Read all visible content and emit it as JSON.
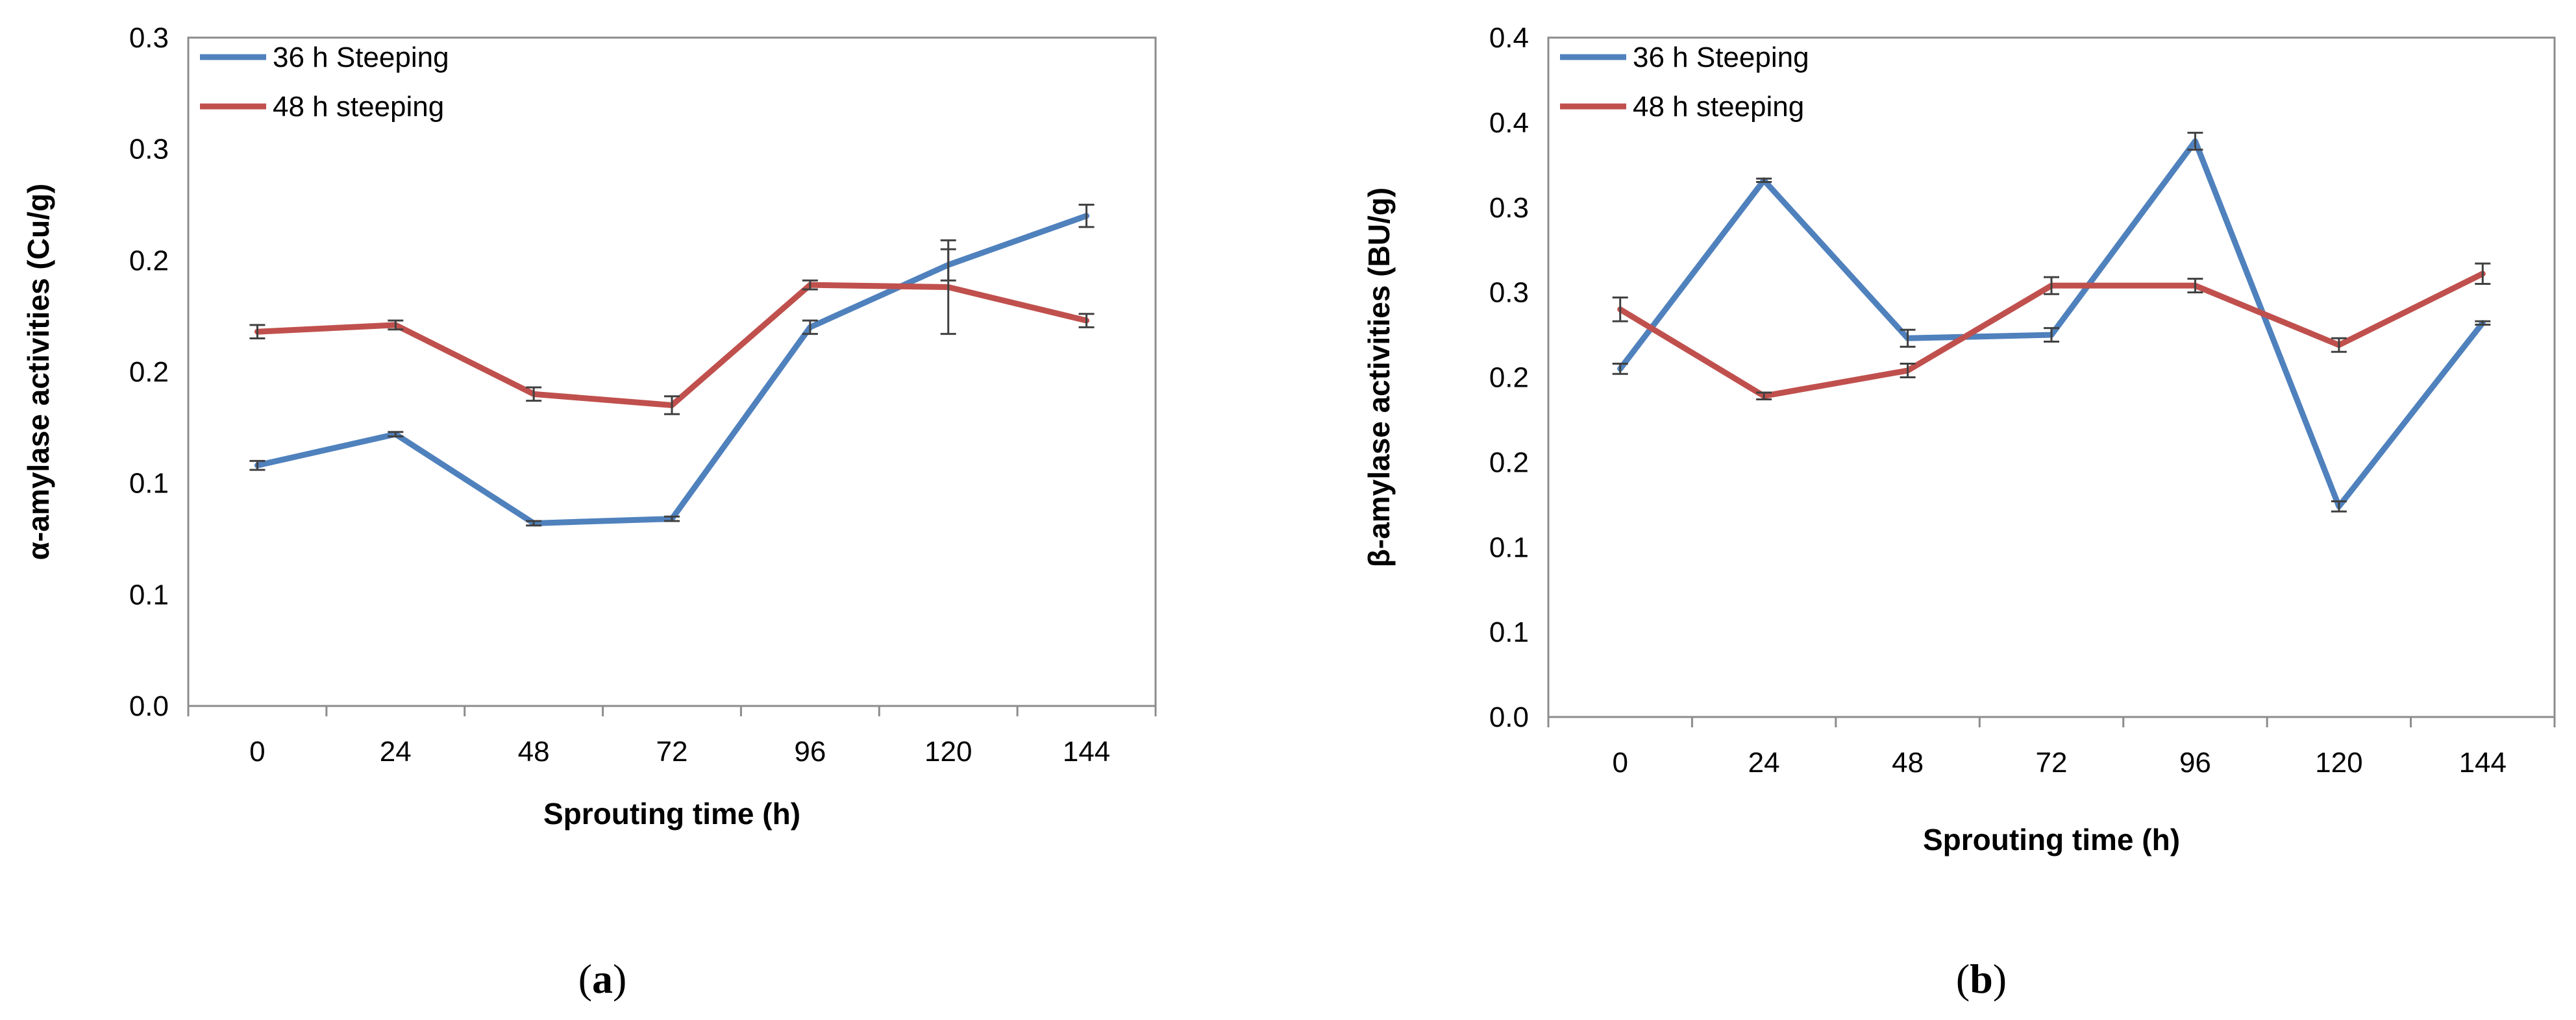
{
  "colors": {
    "series1": "#4F81BD",
    "series2": "#C0504D",
    "frame": "#8C8C8C",
    "errorbar": "#404040"
  },
  "chart_data": [
    {
      "type": "line",
      "panel_label": "a",
      "xlabel": "Sprouting time (h)",
      "ylabel": "α-amylase activities (Cu/g)",
      "categories": [
        "0",
        "24",
        "48",
        "72",
        "96",
        "120",
        "144"
      ],
      "ylim": [
        0,
        0.3
      ],
      "ytick_values": [
        0,
        0.05,
        0.1,
        0.15,
        0.2,
        0.25,
        0.3
      ],
      "ytick_labels": [
        "0.0",
        "0.1",
        "0.1",
        "0.2",
        "0.2",
        "0.3",
        "0.3"
      ],
      "legend_position": "top-left",
      "series": [
        {
          "name": "36 h Steeping",
          "color": "#4F81BD",
          "values": [
            0.108,
            0.122,
            0.082,
            0.084,
            0.17,
            0.198,
            0.22
          ],
          "errors": [
            0.002,
            0.001,
            0.001,
            0.001,
            0.003,
            0.007,
            0.005
          ]
        },
        {
          "name": "48 h steeping",
          "color": "#C0504D",
          "values": [
            0.168,
            0.171,
            0.14,
            0.135,
            0.189,
            0.188,
            0.173
          ],
          "errors": [
            0.003,
            0.002,
            0.003,
            0.004,
            0.002,
            0.021,
            0.003
          ]
        }
      ]
    },
    {
      "type": "line",
      "panel_label": "b",
      "xlabel": "Sprouting time (h)",
      "ylabel": "β-amylase activities  (BU/g)",
      "categories": [
        "0",
        "24",
        "48",
        "72",
        "96",
        "120",
        "144"
      ],
      "ylim": [
        0,
        0.4
      ],
      "ytick_values": [
        0,
        0.05,
        0.1,
        0.15,
        0.2,
        0.25,
        0.3,
        0.35,
        0.4
      ],
      "ytick_labels": [
        "0.0",
        "0.1",
        "0.1",
        "0.2",
        "0.2",
        "0.3",
        "0.3",
        "0.4",
        "0.4"
      ],
      "legend_position": "top-left",
      "series": [
        {
          "name": "36 h Steeping",
          "color": "#4F81BD",
          "values": [
            0.205,
            0.316,
            0.223,
            0.225,
            0.339,
            0.124,
            0.232
          ],
          "errors": [
            0.003,
            0.001,
            0.005,
            0.004,
            0.005,
            0.003,
            0.001
          ]
        },
        {
          "name": "48 h steeping",
          "color": "#C0504D",
          "values": [
            0.24,
            0.189,
            0.204,
            0.254,
            0.254,
            0.219,
            0.261
          ],
          "errors": [
            0.007,
            0.002,
            0.004,
            0.005,
            0.004,
            0.004,
            0.006
          ]
        }
      ]
    }
  ]
}
